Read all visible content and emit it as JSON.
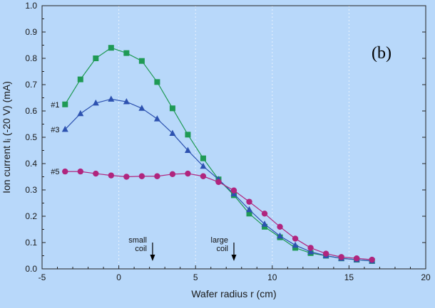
{
  "chart_data": {
    "type": "line",
    "title": "",
    "panel_label": "(b)",
    "xlabel": "Wafer radius r (cm)",
    "ylabel": "Ion current Iᵢ (-20 V) (mA)",
    "xlim": [
      -5,
      20
    ],
    "ylim": [
      0,
      1.0
    ],
    "x_ticks": [
      "-5",
      "0",
      "5",
      "10",
      "15",
      "20"
    ],
    "y_ticks": [
      "0.0",
      "0.1",
      "0.2",
      "0.3",
      "0.4",
      "0.5",
      "0.6",
      "0.7",
      "0.8",
      "0.9",
      "1.0"
    ],
    "grid": "vertical-dashed",
    "x": [
      -3.5,
      -2.5,
      -1.5,
      -0.5,
      0.5,
      1.5,
      2.5,
      3.5,
      4.5,
      5.5,
      6.5,
      7.5,
      8.5,
      9.5,
      10.5,
      11.5,
      12.5,
      13.5,
      14.5,
      15.5,
      16.5
    ],
    "series": [
      {
        "name": "#1",
        "color": "#1f9a55",
        "marker": "square",
        "values": [
          0.625,
          0.72,
          0.8,
          0.84,
          0.82,
          0.79,
          0.71,
          0.61,
          0.51,
          0.42,
          0.34,
          0.28,
          0.21,
          0.16,
          0.12,
          0.08,
          0.06,
          0.05,
          0.04,
          0.035,
          0.03
        ]
      },
      {
        "name": "#3",
        "color": "#2d52b0",
        "marker": "triangle",
        "values": [
          0.53,
          0.59,
          0.63,
          0.645,
          0.635,
          0.61,
          0.57,
          0.515,
          0.45,
          0.39,
          0.34,
          0.285,
          0.225,
          0.17,
          0.125,
          0.09,
          0.065,
          0.05,
          0.04,
          0.035,
          0.03
        ]
      },
      {
        "name": "#5",
        "color": "#b0257e",
        "marker": "circle",
        "values": [
          0.37,
          0.37,
          0.362,
          0.355,
          0.35,
          0.352,
          0.352,
          0.36,
          0.362,
          0.352,
          0.33,
          0.298,
          0.255,
          0.21,
          0.16,
          0.115,
          0.08,
          0.058,
          0.045,
          0.04,
          0.035
        ]
      }
    ],
    "annotations": [
      {
        "text_lines": [
          "small",
          "coil"
        ],
        "x": 2.2
      },
      {
        "text_lines": [
          "large",
          "coil"
        ],
        "x": 7.5
      }
    ]
  }
}
